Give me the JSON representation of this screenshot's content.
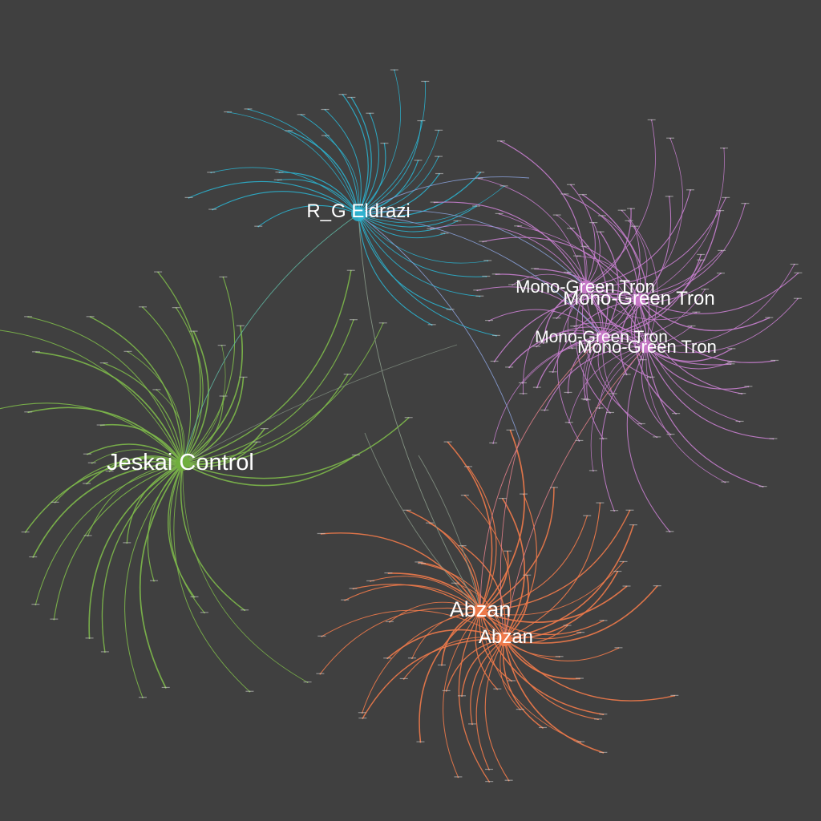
{
  "title": "",
  "background": "#404040",
  "hubs": [
    {
      "id": "eldrazi",
      "label": "R_G Eldrazi",
      "color": "#2bb3cf"
    },
    {
      "id": "jeskai",
      "label": "Jeskai Control",
      "color": "#6fae3c"
    },
    {
      "id": "tron1",
      "label": "Mono-Green Tron",
      "color": "#c878c8"
    },
    {
      "id": "tron2",
      "label": "Mono-Green Tron",
      "color": "#c878c8"
    },
    {
      "id": "tron3",
      "label": "Mono-Green Tron",
      "color": "#c878c8"
    },
    {
      "id": "tron4",
      "label": "Mono-Green Tron",
      "color": "#c878c8"
    },
    {
      "id": "abzan1",
      "label": "Abzan",
      "color": "#f07a4a"
    },
    {
      "id": "abzan2",
      "label": "Abzan",
      "color": "#f07a4a"
    }
  ],
  "edge_colors": {
    "eldrazi": "#2bb3cf",
    "jeskai": "#7db84a",
    "tron": "#c97fd0",
    "abzan": "#f07a4a",
    "bridge_eldrazi_tron": "#8aa0d8",
    "bridge_eldrazi_jeskai": "#5fb4a0",
    "bridge_abzan_tron": "#e07f8a",
    "bridge_grey": "#8a9a8a"
  }
}
